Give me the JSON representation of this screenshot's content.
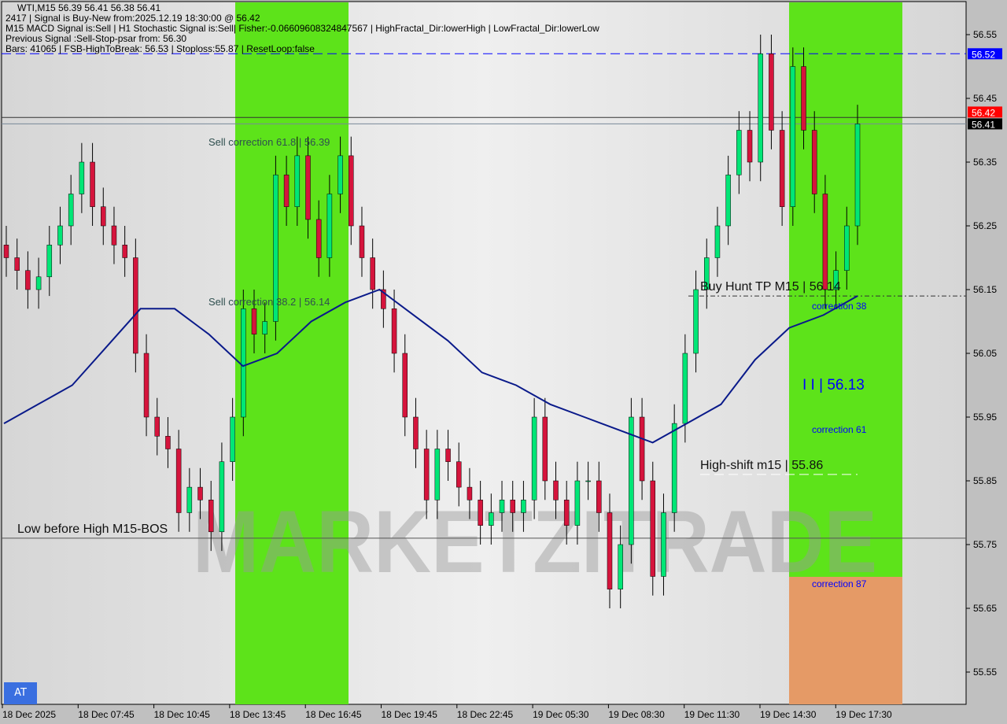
{
  "header": {
    "symbol_line": "WTI,M15  56.39 56.41 56.38 56.41",
    "signal_line": "2417 | Signal is Buy-New from:2025.12.19 18:30:00 @ 56.42",
    "indicators_line": "M15 MACD Signal is:Sell | H1 Stochastic Signal is:Sell| Fisher:-0.06609608324847567 | HighFractal_Dir:lowerHigh | LowFractal_Dir:lowerLow",
    "previous_line": "Previous Signal :Sell-Stop-psar from: 56.30",
    "bars_line": "Bars: 41065 | FSB-HighToBreak: 56.53 | Stoploss:55.87 | ResetLoop:false"
  },
  "badge": "AT",
  "watermark": "MARKETZITRADE",
  "colors": {
    "bull": "#00e676",
    "bear": "#d5143c",
    "ma": "#0a1a8a",
    "zone_green": "#5de31a",
    "zone_orange": "#e59a66",
    "psar": "#ff4500",
    "level_blue": "#0000ff"
  },
  "annotations": {
    "sell_618": "Sell correction 61.8 | 56.39",
    "sell_382": "Sell correction 38.2 | 56.14",
    "buy_hunt": "Buy Hunt TP M15 | 56.14",
    "corr38": "correction 38",
    "mid_level": "I I | 56.13",
    "corr61": "correction 61",
    "high_shift": "High-shift m15 | 55.86",
    "corr87": "correction 87",
    "low_before_high": "Low before High    M15-BOS"
  },
  "chart_data": {
    "type": "candlestick",
    "title": "WTI,M15",
    "ylim": [
      55.5,
      56.6
    ],
    "y_ticks": [
      "56.55",
      "56.45",
      "56.35",
      "56.25",
      "56.15",
      "56.05",
      "55.95",
      "55.85",
      "55.75",
      "55.65",
      "55.55"
    ],
    "x_ticks": [
      "18 Dec 2025",
      "18 Dec 07:45",
      "18 Dec 10:45",
      "18 Dec 13:45",
      "18 Dec 16:45",
      "18 Dec 19:45",
      "18 Dec 22:45",
      "19 Dec 05:30",
      "19 Dec 08:30",
      "19 Dec 11:30",
      "19 Dec 14:30",
      "19 Dec 17:30"
    ],
    "price_labels": [
      {
        "value": 56.52,
        "text": "56.52",
        "bg": "#0000ff",
        "fg": "#ffffff"
      },
      {
        "value": 56.42,
        "text": "56.42",
        "bg": "#ff0000",
        "fg": "#ffffff"
      },
      {
        "value": 56.41,
        "text": "56.41",
        "bg": "#000000",
        "fg": "#ffffff"
      }
    ],
    "closes": [
      56.2,
      56.18,
      56.15,
      56.17,
      56.22,
      56.25,
      56.3,
      56.35,
      56.28,
      56.25,
      56.22,
      56.2,
      56.05,
      55.95,
      55.92,
      55.9,
      55.8,
      55.84,
      55.82,
      55.77,
      55.88,
      55.95,
      56.12,
      56.08,
      56.1,
      56.33,
      56.28,
      56.36,
      56.26,
      56.2,
      56.3,
      56.36,
      56.25,
      56.2,
      56.15,
      56.12,
      56.05,
      55.95,
      55.9,
      55.82,
      55.9,
      55.88,
      55.84,
      55.82,
      55.78,
      55.8,
      55.82,
      55.8,
      55.82,
      55.95,
      55.85,
      55.82,
      55.78,
      55.85,
      55.85,
      55.8,
      55.68,
      55.75,
      55.95,
      55.85,
      55.7,
      55.8,
      55.94,
      56.05,
      56.15,
      56.2,
      56.25,
      56.33,
      56.4,
      56.35,
      56.52,
      56.4,
      56.28,
      56.5,
      56.4,
      56.3,
      56.15,
      56.18,
      56.25,
      56.41
    ],
    "ma": [
      55.94,
      55.97,
      56.0,
      56.06,
      56.12,
      56.12,
      56.08,
      56.03,
      56.05,
      56.1,
      56.13,
      56.15,
      56.11,
      56.07,
      56.02,
      56.0,
      55.97,
      55.95,
      55.93,
      55.91,
      55.94,
      55.97,
      56.04,
      56.09,
      56.11,
      56.14
    ],
    "levels": [
      {
        "name": "fsb-high",
        "value": 56.52,
        "style": "dashed",
        "color": "#0000ff"
      },
      {
        "name": "signal-price",
        "value": 56.42,
        "style": "solid",
        "color": "#333"
      },
      {
        "name": "current-price",
        "value": 56.41,
        "style": "solid",
        "color": "#778899"
      },
      {
        "name": "buy-hunt-tp",
        "value": 56.14,
        "style": "dashdot",
        "color": "#333"
      },
      {
        "name": "high-shift",
        "value": 55.86,
        "style": "dashed",
        "color": "#ffffff"
      },
      {
        "name": "low-before-high",
        "value": 55.76,
        "style": "solid",
        "color": "#555"
      }
    ]
  }
}
